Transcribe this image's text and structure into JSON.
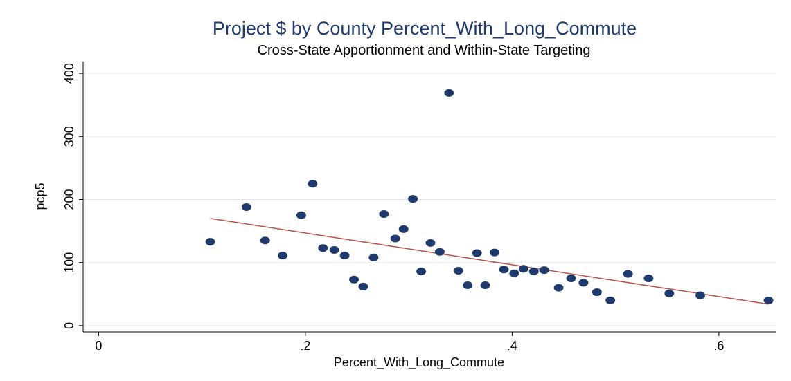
{
  "chart_data": {
    "type": "scatter",
    "title": "Project $ by County Percent_With_Long_Commute",
    "subtitle": "Cross-State Apportionment and Within-State Targeting",
    "xlabel": "Percent_With_Long_Commute",
    "ylabel": "pcp5",
    "xlim": [
      -0.015,
      0.655
    ],
    "ylim": [
      -10,
      410
    ],
    "x_ticks": [
      0,
      0.2,
      0.4,
      0.6
    ],
    "x_tick_labels": [
      "0",
      ".2",
      ".4",
      ".6"
    ],
    "y_ticks": [
      0,
      100,
      200,
      300,
      400
    ],
    "y_tick_labels": [
      "0",
      "100",
      "200",
      "300",
      "400"
    ],
    "grid": true,
    "marker_color": "#1f3b6e",
    "fit_color": "#b5504a",
    "points": [
      {
        "x": 0.108,
        "y": 133
      },
      {
        "x": 0.143,
        "y": 188
      },
      {
        "x": 0.161,
        "y": 135
      },
      {
        "x": 0.178,
        "y": 111
      },
      {
        "x": 0.196,
        "y": 175
      },
      {
        "x": 0.207,
        "y": 225
      },
      {
        "x": 0.217,
        "y": 123
      },
      {
        "x": 0.228,
        "y": 120
      },
      {
        "x": 0.238,
        "y": 111
      },
      {
        "x": 0.247,
        "y": 73
      },
      {
        "x": 0.256,
        "y": 62
      },
      {
        "x": 0.266,
        "y": 108
      },
      {
        "x": 0.276,
        "y": 177
      },
      {
        "x": 0.287,
        "y": 138
      },
      {
        "x": 0.295,
        "y": 153
      },
      {
        "x": 0.304,
        "y": 201
      },
      {
        "x": 0.312,
        "y": 86
      },
      {
        "x": 0.321,
        "y": 131
      },
      {
        "x": 0.33,
        "y": 117
      },
      {
        "x": 0.339,
        "y": 369
      },
      {
        "x": 0.348,
        "y": 87
      },
      {
        "x": 0.357,
        "y": 64
      },
      {
        "x": 0.366,
        "y": 115
      },
      {
        "x": 0.374,
        "y": 64
      },
      {
        "x": 0.383,
        "y": 116
      },
      {
        "x": 0.392,
        "y": 89
      },
      {
        "x": 0.402,
        "y": 83
      },
      {
        "x": 0.411,
        "y": 90
      },
      {
        "x": 0.421,
        "y": 86
      },
      {
        "x": 0.431,
        "y": 88
      },
      {
        "x": 0.445,
        "y": 60
      },
      {
        "x": 0.457,
        "y": 75
      },
      {
        "x": 0.469,
        "y": 68
      },
      {
        "x": 0.482,
        "y": 53
      },
      {
        "x": 0.495,
        "y": 40
      },
      {
        "x": 0.512,
        "y": 82
      },
      {
        "x": 0.532,
        "y": 75
      },
      {
        "x": 0.552,
        "y": 51
      },
      {
        "x": 0.582,
        "y": 48
      },
      {
        "x": 0.648,
        "y": 40
      }
    ],
    "fit_line": {
      "x": [
        0.108,
        0.648
      ],
      "y": [
        170,
        34
      ]
    }
  }
}
